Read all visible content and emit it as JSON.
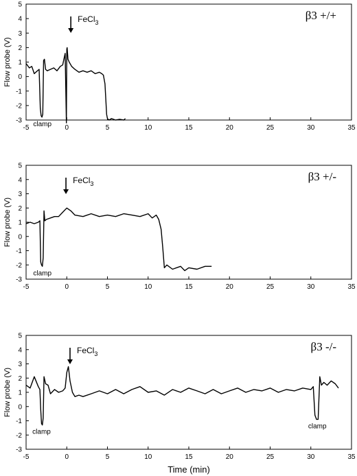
{
  "x_axis": {
    "label": "Time (min)",
    "ticks": [
      "-5",
      "0",
      "5",
      "10",
      "15",
      "20",
      "25",
      "30",
      "35"
    ],
    "range": [
      -5,
      35
    ]
  },
  "chart_data": [
    {
      "type": "line",
      "title": "β3 +/+",
      "ylabel": "Flow probe (V)",
      "xlim": [
        -5,
        35
      ],
      "ylim": [
        -3,
        5
      ],
      "yticks": [
        "5",
        "4",
        "3",
        "2",
        "1",
        "0",
        "-1",
        "-2",
        "-3"
      ],
      "annotations": [
        {
          "text": "clamp",
          "x": -3.0,
          "type": "label"
        },
        {
          "text": "FeCl",
          "sub": "3",
          "x": 0.5,
          "type": "arrow"
        }
      ],
      "series": [
        {
          "x": [
            -5,
            -4.6,
            -4.3,
            -4.0,
            -3.7,
            -3.4,
            -3.25,
            -3.15,
            -3.05,
            -2.95,
            -2.85,
            -2.75,
            -2.6,
            -2.4,
            -2.0,
            -1.6,
            -1.2,
            -0.8,
            -0.5,
            -0.2,
            -0.05,
            0.0,
            0.05,
            0.15,
            0.3,
            0.6,
            1.0,
            1.5,
            2.0,
            2.5,
            3.0,
            3.5,
            4.0,
            4.3,
            4.5,
            4.7,
            4.9,
            5.0,
            5.2,
            5.5,
            6.0,
            6.5,
            7.0,
            7.2
          ],
          "y": [
            0.9,
            0.6,
            0.7,
            0.2,
            0.35,
            0.5,
            -2.2,
            -2.7,
            -2.8,
            -2.6,
            1.1,
            1.2,
            0.5,
            0.4,
            0.5,
            0.6,
            0.4,
            0.7,
            0.8,
            1.6,
            -3.2,
            1.9,
            2.0,
            1.2,
            1.0,
            0.7,
            0.5,
            0.3,
            0.4,
            0.3,
            0.4,
            0.2,
            0.3,
            0.2,
            0.1,
            -0.5,
            -2.6,
            -2.9,
            -3.0,
            -2.9,
            -3.0,
            -2.95,
            -3.0,
            -2.9
          ]
        }
      ]
    },
    {
      "type": "line",
      "title": "β3 +/-",
      "ylabel": "Flow probe (V)",
      "xlim": [
        -5,
        35
      ],
      "ylim": [
        -3,
        5
      ],
      "yticks": [
        "5",
        "4",
        "3",
        "2",
        "1",
        "0",
        "-1",
        "-2",
        "-3"
      ],
      "annotations": [
        {
          "text": "clamp",
          "x": -3.0,
          "type": "label"
        },
        {
          "text": "FeCl",
          "sub": "3",
          "x": -0.1,
          "type": "arrow"
        }
      ],
      "series": [
        {
          "x": [
            -5,
            -4.5,
            -4.0,
            -3.5,
            -3.3,
            -3.2,
            -3.1,
            -3.0,
            -2.9,
            -2.8,
            -2.7,
            -2.5,
            -2.0,
            -1.5,
            -1.0,
            -0.5,
            0.0,
            0.5,
            1.0,
            2.0,
            3.0,
            4.0,
            5.0,
            6.0,
            7.0,
            8.0,
            9.0,
            10.0,
            10.5,
            11.0,
            11.3,
            11.6,
            11.8,
            12.0,
            12.3,
            13.0,
            14.0,
            14.5,
            15.0,
            16.0,
            17.0,
            17.8
          ],
          "y": [
            0.9,
            1.0,
            0.9,
            1.0,
            1.1,
            -1.8,
            -2.0,
            -2.1,
            -1.5,
            1.8,
            1.1,
            1.2,
            1.3,
            1.4,
            1.4,
            1.7,
            2.0,
            1.8,
            1.5,
            1.4,
            1.6,
            1.4,
            1.5,
            1.4,
            1.6,
            1.5,
            1.4,
            1.6,
            1.3,
            1.5,
            1.2,
            0.5,
            -0.8,
            -2.2,
            -2.0,
            -2.3,
            -2.1,
            -2.4,
            -2.2,
            -2.3,
            -2.1,
            -2.1
          ]
        }
      ]
    },
    {
      "type": "line",
      "title": "β3 -/-",
      "ylabel": "Flow probe (V)",
      "xlim": [
        -5,
        35
      ],
      "ylim": [
        -3,
        5
      ],
      "yticks": [
        "5",
        "4",
        "3",
        "2",
        "1",
        "0",
        "-1",
        "-2",
        "-3"
      ],
      "annotations": [
        {
          "text": "clamp",
          "x": -3.1,
          "type": "label"
        },
        {
          "text": "FeCl",
          "sub": "3",
          "x": 0.4,
          "type": "arrow"
        },
        {
          "text": "clamp",
          "x": 30.8,
          "type": "label"
        }
      ],
      "series": [
        {
          "x": [
            -5,
            -4.5,
            -4.0,
            -3.5,
            -3.3,
            -3.2,
            -3.1,
            -3.0,
            -2.9,
            -2.8,
            -2.6,
            -2.3,
            -2.0,
            -1.5,
            -1.0,
            -0.5,
            -0.2,
            0.0,
            0.2,
            0.4,
            0.7,
            1.0,
            1.5,
            2.0,
            3.0,
            4.0,
            5.0,
            6.0,
            7.0,
            8.0,
            9.0,
            10.0,
            11.0,
            12.0,
            13.0,
            14.0,
            15.0,
            16.0,
            17.0,
            18.0,
            19.0,
            20.0,
            21.0,
            22.0,
            23.0,
            24.0,
            25.0,
            26.0,
            27.0,
            28.0,
            29.0,
            30.0,
            30.3,
            30.5,
            30.7,
            30.9,
            31.1,
            31.3,
            31.6,
            32.0,
            32.5,
            33.0,
            33.4
          ],
          "y": [
            1.5,
            1.3,
            2.1,
            1.4,
            1.2,
            -0.2,
            -1.2,
            -1.3,
            -0.8,
            2.1,
            1.6,
            1.5,
            0.9,
            1.2,
            1.0,
            1.1,
            1.3,
            2.4,
            2.8,
            1.8,
            1.0,
            0.7,
            0.8,
            0.7,
            0.9,
            1.1,
            0.9,
            1.2,
            0.9,
            1.2,
            1.4,
            1.0,
            1.1,
            0.8,
            1.2,
            1.0,
            1.3,
            1.1,
            0.9,
            1.2,
            0.9,
            1.1,
            1.3,
            1.0,
            1.2,
            1.1,
            1.3,
            1.0,
            1.2,
            1.1,
            1.3,
            1.2,
            1.4,
            -0.6,
            -0.9,
            -0.9,
            2.1,
            1.5,
            1.7,
            1.5,
            1.8,
            1.6,
            1.3
          ]
        }
      ]
    }
  ]
}
